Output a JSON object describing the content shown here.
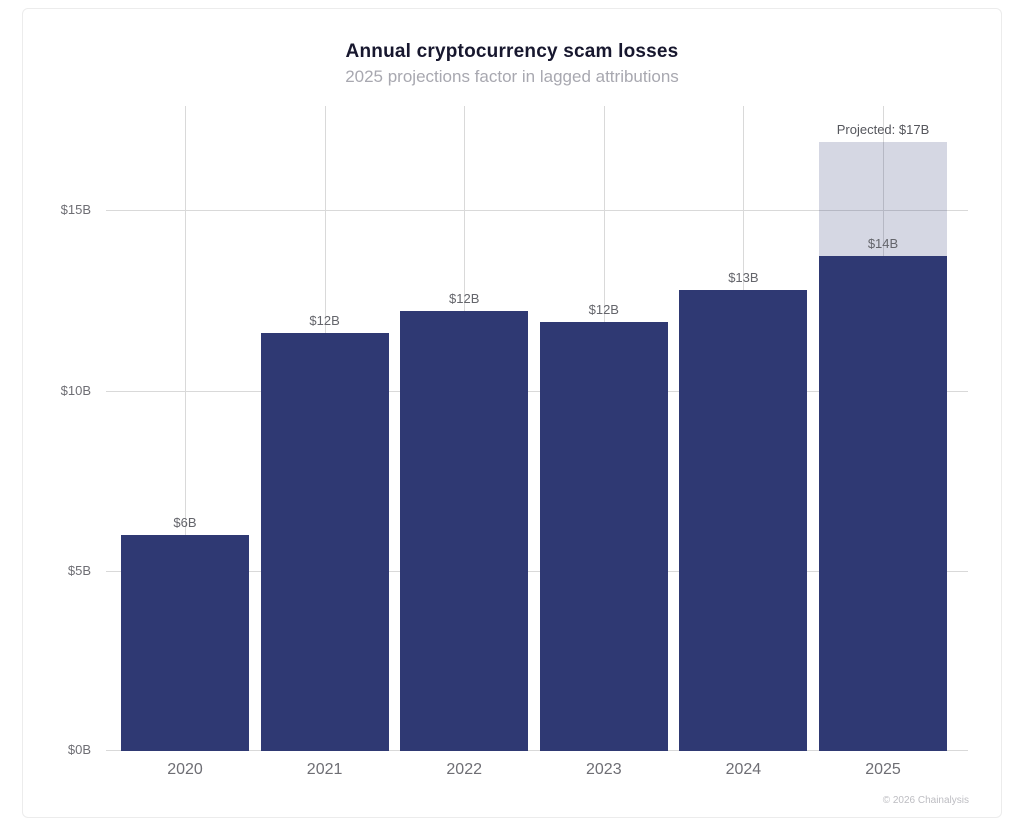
{
  "page": {
    "attribution": "© 2026 Chainalysis"
  },
  "chart_data": {
    "type": "bar",
    "title": "Annual cryptocurrency scam losses",
    "subtitle": "2025 projections factor in lagged attributions",
    "categories": [
      "2020",
      "2021",
      "2022",
      "2023",
      "2024",
      "2025"
    ],
    "values": [
      6.0,
      11.6,
      12.2,
      11.9,
      12.8,
      13.75
    ],
    "bar_labels": [
      "$6B",
      "$12B",
      "$12B",
      "$12B",
      "$13B",
      "$14B"
    ],
    "projection": {
      "year": "2025",
      "value": 16.9,
      "label": "Projected: $17B"
    },
    "y_ticks": [
      {
        "value": 0,
        "label": "$0B"
      },
      {
        "value": 5,
        "label": "$5B"
      },
      {
        "value": 10,
        "label": "$10B"
      },
      {
        "value": 15,
        "label": "$15B"
      }
    ],
    "ylim": [
      0,
      17.9
    ],
    "xlabel": "",
    "ylabel": "",
    "grid": "on",
    "legend_position": "none",
    "colors": {
      "bar": "#2f3973",
      "projection_fill": "rgba(47, 57, 115, 0.2)",
      "gridline": "#d9d9d9"
    }
  }
}
